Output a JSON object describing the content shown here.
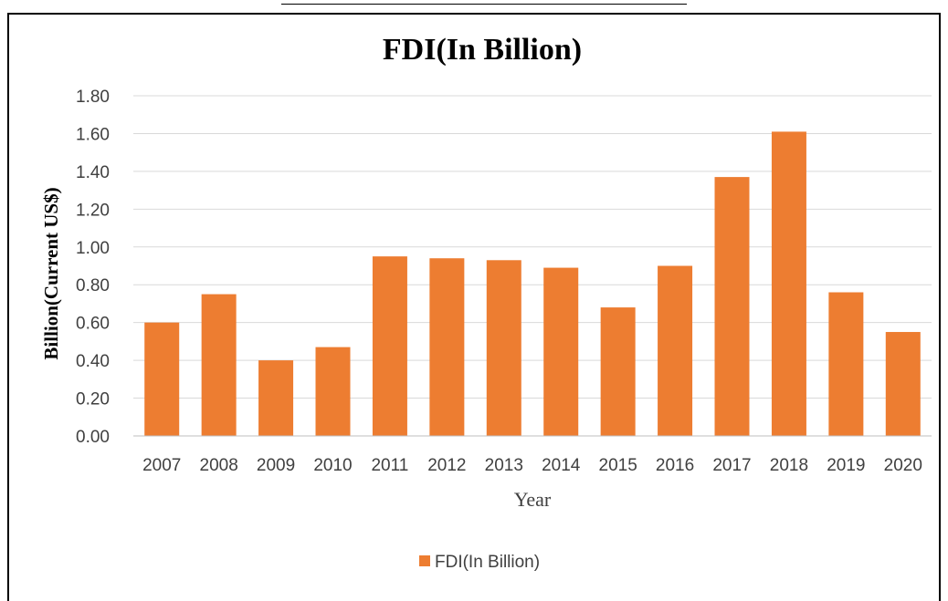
{
  "chart_data": {
    "type": "bar",
    "title": "FDI(In Billion)",
    "xlabel": "Year",
    "ylabel": "Billion(Current US$)",
    "categories": [
      "2007",
      "2008",
      "2009",
      "2010",
      "2011",
      "2012",
      "2013",
      "2014",
      "2015",
      "2016",
      "2017",
      "2018",
      "2019",
      "2020"
    ],
    "series": [
      {
        "name": "FDI(In Billion)",
        "values": [
          0.6,
          0.75,
          0.4,
          0.47,
          0.95,
          0.94,
          0.93,
          0.89,
          0.68,
          0.9,
          1.37,
          1.61,
          0.76,
          0.55
        ],
        "color": "#ED7D31"
      }
    ],
    "ylim": [
      0,
      1.8
    ],
    "yticks": [
      "0.00",
      "0.20",
      "0.40",
      "0.60",
      "0.80",
      "1.00",
      "1.20",
      "1.40",
      "1.60",
      "1.80"
    ],
    "grid": true,
    "legend_position": "bottom"
  }
}
